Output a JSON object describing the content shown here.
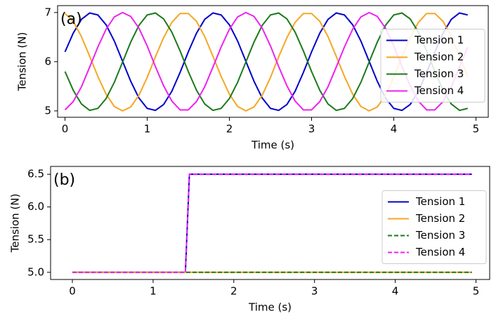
{
  "chart_data": [
    {
      "type": "line",
      "annotation": "(a)",
      "xlabel": "Time (s)",
      "ylabel": "Tension (N)",
      "x": [
        0,
        0.1,
        0.2,
        0.3,
        0.4,
        0.5,
        0.6,
        0.7,
        0.8,
        0.9,
        1.0,
        1.1,
        1.2,
        1.3,
        1.4,
        1.5,
        1.6,
        1.7,
        1.8,
        1.9,
        2.0,
        2.1,
        2.2,
        2.3,
        2.4,
        2.5,
        2.6,
        2.7,
        2.8,
        2.9,
        3.0,
        3.1,
        3.2,
        3.3,
        3.4,
        3.5,
        3.6,
        3.7,
        3.8,
        3.9,
        4.0,
        4.1,
        4.2,
        4.3,
        4.4,
        4.5,
        4.6,
        4.7,
        4.8,
        4.9
      ],
      "series": [
        {
          "name": "Tension 1",
          "color": "#0000cc",
          "linestyle": "solid",
          "values": [
            6.2,
            6.58,
            6.86,
            6.99,
            6.95,
            6.75,
            6.42,
            6.01,
            5.6,
            5.26,
            5.05,
            5.01,
            5.13,
            5.4,
            5.78,
            6.2,
            6.58,
            6.86,
            6.99,
            6.95,
            6.75,
            6.42,
            6.01,
            5.6,
            5.26,
            5.05,
            5.01,
            5.13,
            5.4,
            5.78,
            6.2,
            6.58,
            6.86,
            6.99,
            6.95,
            6.75,
            6.42,
            6.01,
            5.6,
            5.26,
            5.05,
            5.01,
            5.13,
            5.4,
            5.78,
            6.2,
            6.58,
            6.86,
            6.99,
            6.95
          ]
        },
        {
          "name": "Tension 2",
          "color": "#f5a623",
          "linestyle": "solid",
          "values": [
            6.98,
            6.82,
            6.51,
            6.11,
            5.7,
            5.34,
            5.09,
            5.0,
            5.08,
            5.32,
            5.68,
            6.1,
            6.49,
            6.8,
            6.98,
            6.98,
            6.82,
            6.51,
            6.11,
            5.7,
            5.34,
            5.09,
            5.0,
            5.08,
            5.32,
            5.68,
            6.1,
            6.49,
            6.8,
            6.98,
            6.98,
            6.82,
            6.51,
            6.11,
            5.7,
            5.34,
            5.09,
            5.0,
            5.08,
            5.32,
            5.68,
            6.1,
            6.49,
            6.8,
            6.98,
            6.98,
            6.82,
            6.51,
            6.11,
            5.7
          ]
        },
        {
          "name": "Tension 3",
          "color": "#1a7a1a",
          "linestyle": "solid",
          "values": [
            5.8,
            5.42,
            5.14,
            5.01,
            5.05,
            5.25,
            5.58,
            5.99,
            6.4,
            6.74,
            6.95,
            6.99,
            6.87,
            6.6,
            6.22,
            5.8,
            5.42,
            5.14,
            5.01,
            5.05,
            5.25,
            5.58,
            5.99,
            6.4,
            6.74,
            6.95,
            6.99,
            6.87,
            6.6,
            6.22,
            5.8,
            5.42,
            5.14,
            5.01,
            5.05,
            5.25,
            5.58,
            5.99,
            6.4,
            6.74,
            6.95,
            6.99,
            6.87,
            6.6,
            6.22,
            5.8,
            5.42,
            5.14,
            5.01,
            5.05
          ]
        },
        {
          "name": "Tension 4",
          "color": "#ee22ee",
          "linestyle": "solid",
          "values": [
            5.02,
            5.19,
            5.49,
            5.89,
            6.3,
            6.66,
            6.91,
            7.0,
            6.92,
            6.68,
            6.32,
            5.9,
            5.51,
            5.2,
            5.02,
            5.02,
            5.19,
            5.49,
            5.89,
            6.3,
            6.66,
            6.91,
            7.0,
            6.92,
            6.68,
            6.32,
            5.9,
            5.51,
            5.2,
            5.02,
            5.02,
            5.19,
            5.49,
            5.89,
            6.3,
            6.66,
            6.91,
            7.0,
            6.92,
            6.68,
            6.32,
            5.9,
            5.51,
            5.2,
            5.02,
            5.02,
            5.19,
            5.49,
            5.89,
            6.3
          ]
        }
      ],
      "xlim": [
        -0.09,
        5.15
      ],
      "xticks": [
        0,
        1,
        2,
        3,
        4,
        5
      ],
      "ylim": [
        4.87,
        7.14
      ],
      "yticks": [
        5,
        6,
        7
      ],
      "legend": "right"
    },
    {
      "type": "line",
      "annotation": "(b)",
      "xlabel": "Time (s)",
      "ylabel": "Tension (N)",
      "x": [
        0,
        1.4,
        1.45,
        4.95
      ],
      "series": [
        {
          "name": "Tension 1",
          "color": "#0000cc",
          "linestyle": "solid",
          "values": [
            5,
            5,
            6.5,
            6.5
          ]
        },
        {
          "name": "Tension 2",
          "color": "#f5a623",
          "linestyle": "solid",
          "values": [
            5,
            5,
            5,
            5
          ]
        },
        {
          "name": "Tension 3",
          "color": "#1a7a1a",
          "linestyle": "dashed",
          "values": [
            5,
            5,
            5,
            5
          ]
        },
        {
          "name": "Tension 4",
          "color": "#ee22ee",
          "linestyle": "dashed",
          "values": [
            5,
            5,
            6.5,
            6.5
          ]
        }
      ],
      "xlim": [
        -0.27,
        5.17
      ],
      "xticks": [
        0,
        1,
        2,
        3,
        4,
        5
      ],
      "ylim": [
        4.89,
        6.62
      ],
      "yticks": [
        {
          "value": 5,
          "label": "5.0"
        },
        {
          "value": 5.5,
          "label": "5.5"
        },
        {
          "value": 6,
          "label": "6.0"
        },
        {
          "value": 6.5,
          "label": "6.5"
        }
      ],
      "legend": "right"
    }
  ]
}
